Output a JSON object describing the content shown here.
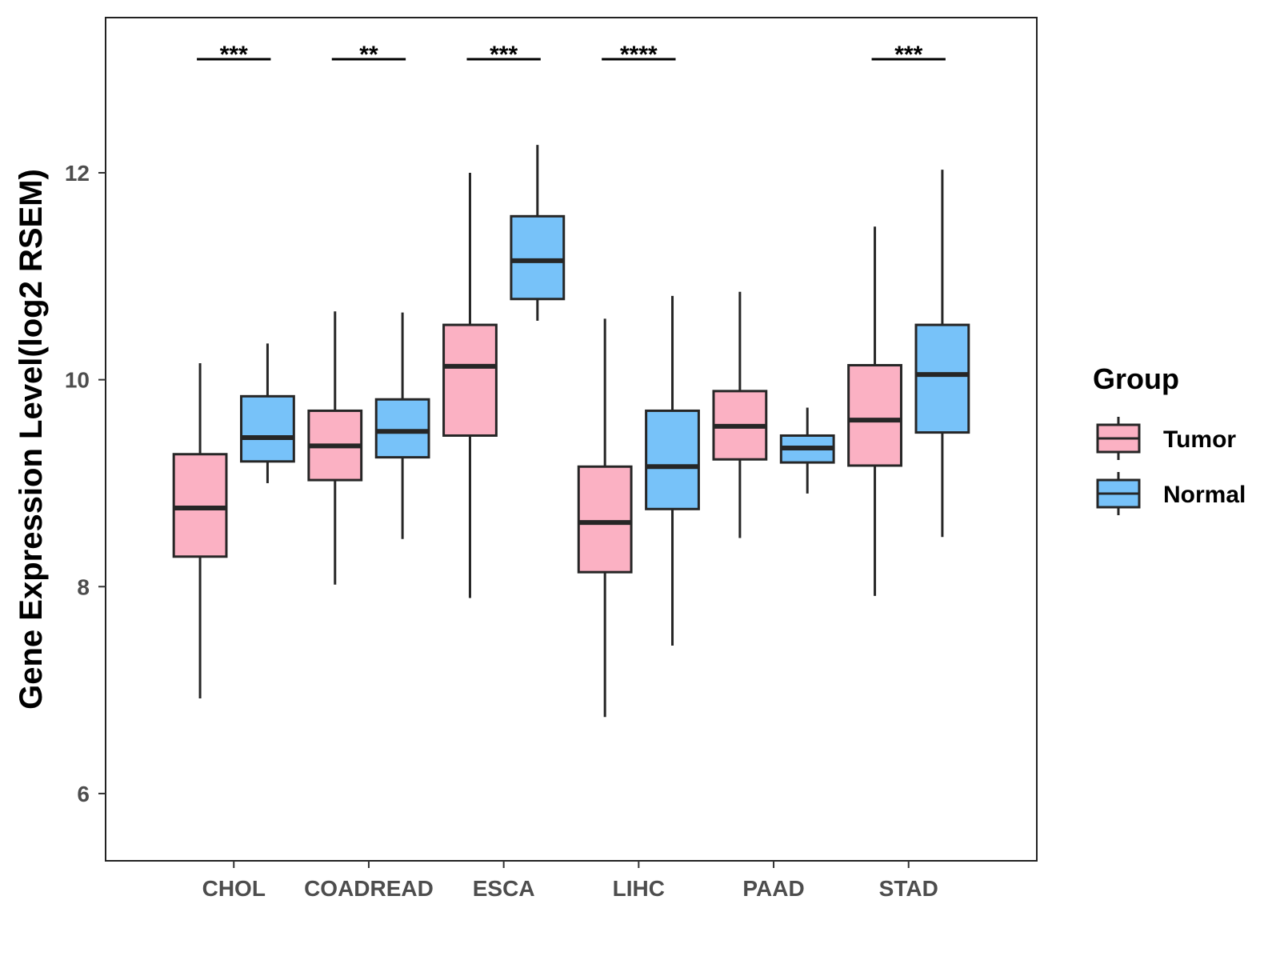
{
  "chart_data": {
    "type": "box",
    "title": "",
    "xlabel": "",
    "ylabel": "Gene Expression Level(log2 RSEM)",
    "ylim": [
      5.35,
      13.5
    ],
    "yticks": [
      6,
      8,
      10,
      12
    ],
    "categories": [
      "CHOL",
      "COADREAD",
      "ESCA",
      "LIHC",
      "PAAD",
      "STAD"
    ],
    "series": [
      {
        "name": "Tumor",
        "color": "#FBB1C3",
        "boxes": [
          {
            "min": 6.92,
            "q1": 8.29,
            "median": 8.76,
            "q3": 9.28,
            "max": 10.16
          },
          {
            "min": 8.02,
            "q1": 9.03,
            "median": 9.36,
            "q3": 9.7,
            "max": 10.66
          },
          {
            "min": 7.89,
            "q1": 9.46,
            "median": 10.13,
            "q3": 10.53,
            "max": 12.0
          },
          {
            "min": 6.74,
            "q1": 8.14,
            "median": 8.62,
            "q3": 9.16,
            "max": 10.59
          },
          {
            "min": 8.47,
            "q1": 9.23,
            "median": 9.55,
            "q3": 9.89,
            "max": 10.85
          },
          {
            "min": 7.91,
            "q1": 9.17,
            "median": 9.61,
            "q3": 10.14,
            "max": 11.48
          }
        ]
      },
      {
        "name": "Normal",
        "color": "#77C2F9",
        "boxes": [
          {
            "min": 9.0,
            "q1": 9.21,
            "median": 9.44,
            "q3": 9.84,
            "max": 10.35
          },
          {
            "min": 8.46,
            "q1": 9.25,
            "median": 9.5,
            "q3": 9.81,
            "max": 10.65
          },
          {
            "min": 10.57,
            "q1": 10.78,
            "median": 11.15,
            "q3": 11.58,
            "max": 12.27
          },
          {
            "min": 7.43,
            "q1": 8.75,
            "median": 9.16,
            "q3": 9.7,
            "max": 10.81
          },
          {
            "min": 8.9,
            "q1": 9.2,
            "median": 9.34,
            "q3": 9.46,
            "max": 9.73
          },
          {
            "min": 8.48,
            "q1": 9.49,
            "median": 10.05,
            "q3": 10.53,
            "max": 12.03
          }
        ]
      }
    ],
    "significance": [
      "***",
      "**",
      "***",
      "****",
      "",
      "***"
    ],
    "legend": {
      "title": "Group",
      "position": "right",
      "entries": [
        "Tumor",
        "Normal"
      ]
    },
    "grid": false,
    "box_outline_color": "#262626"
  }
}
